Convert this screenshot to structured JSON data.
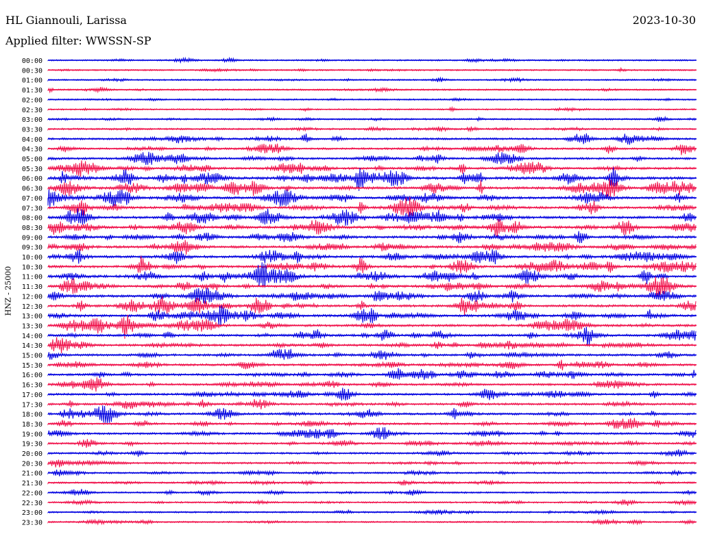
{
  "header": {
    "station": "HL Giannouli, Larissa",
    "date": "2023-10-30",
    "filter": "Applied filter: WWSSN-SP"
  },
  "chart_data": {
    "type": "helicorder",
    "ylabel": "HNZ - 25000",
    "colors": [
      "#0000e0",
      "#f0104a"
    ],
    "rows": [
      "00:00",
      "00:30",
      "01:00",
      "01:30",
      "02:00",
      "02:30",
      "03:00",
      "03:30",
      "04:00",
      "04:30",
      "05:00",
      "05:30",
      "06:00",
      "06:30",
      "07:00",
      "07:30",
      "08:00",
      "08:30",
      "09:00",
      "09:30",
      "10:00",
      "10:30",
      "11:00",
      "11:30",
      "12:00",
      "12:30",
      "13:00",
      "13:30",
      "14:00",
      "14:30",
      "15:00",
      "15:30",
      "16:00",
      "16:30",
      "17:00",
      "17:30",
      "18:00",
      "18:30",
      "19:00",
      "19:30",
      "20:00",
      "20:30",
      "21:00",
      "21:30",
      "22:00",
      "22:30",
      "23:00",
      "23:30"
    ],
    "row_activity": [
      0.2,
      0.2,
      0.2,
      0.25,
      0.2,
      0.2,
      0.3,
      0.35,
      0.5,
      0.55,
      0.6,
      0.7,
      0.95,
      0.9,
      0.8,
      0.8,
      0.8,
      0.8,
      0.75,
      0.8,
      0.8,
      0.85,
      0.9,
      0.85,
      0.8,
      0.75,
      0.8,
      0.75,
      0.75,
      0.7,
      0.65,
      0.65,
      0.65,
      0.6,
      0.6,
      0.6,
      0.6,
      0.55,
      0.55,
      0.5,
      0.45,
      0.45,
      0.4,
      0.4,
      0.3,
      0.3,
      0.3,
      0.25
    ]
  }
}
